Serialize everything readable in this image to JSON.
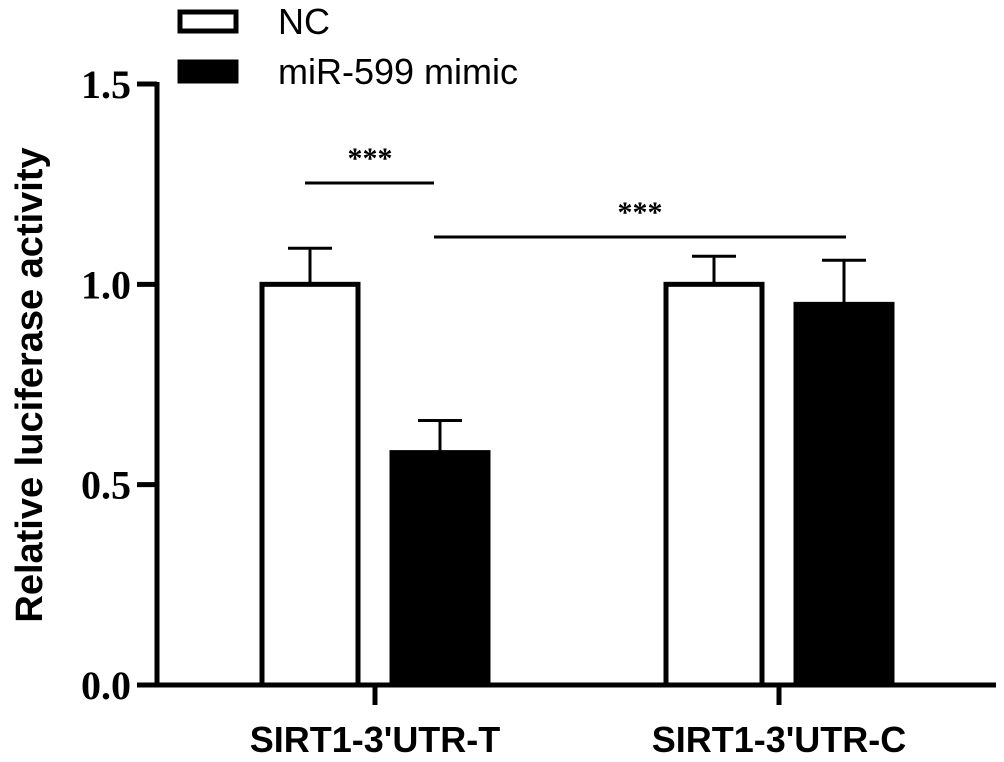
{
  "chart_data": {
    "type": "bar",
    "title": "",
    "xlabel": "",
    "ylabel": "Relative luciferase activity",
    "ylim": [
      0,
      1.5
    ],
    "yticks": [
      "0.0",
      "0.5",
      "1.0",
      "1.5"
    ],
    "ytick_values": [
      0,
      0.5,
      1.0,
      1.5
    ],
    "categories": [
      "SIRT1-3'UTR-T",
      "SIRT1-3'UTR-C"
    ],
    "series": [
      {
        "name": "NC",
        "values": [
          1.0,
          1.0
        ],
        "errors": [
          0.09,
          0.07
        ],
        "fill": "#ffffff",
        "stroke": "#000000"
      },
      {
        "name": "miR-599 mimic",
        "values": [
          0.58,
          0.95
        ],
        "errors": [
          0.08,
          0.11
        ],
        "fill": "#000000",
        "stroke": "#000000"
      }
    ],
    "legend_position": "top-left",
    "grid": false,
    "significance": [
      {
        "label": "***",
        "between": "SIRT1-3'UTR-T NC vs SIRT1-3'UTR-T miR-599 mimic"
      },
      {
        "label": "***",
        "between": "SIRT1-3'UTR-T miR-599 mimic vs SIRT1-3'UTR-C miR-599 mimic"
      }
    ]
  }
}
